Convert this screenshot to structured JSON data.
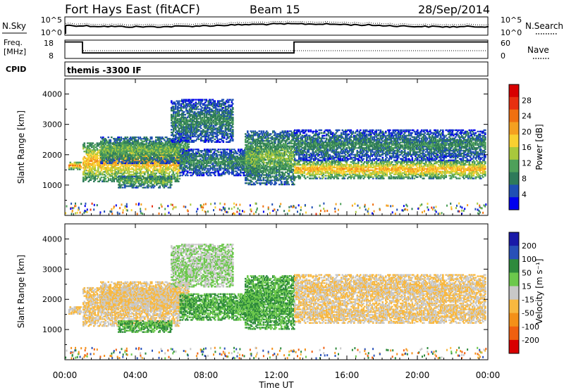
{
  "header": {
    "station": "Fort Hays East (fitACF)",
    "beam": "Beam 15",
    "date": "28/Sep/2014"
  },
  "noise_panel": {
    "left_label": "N.Sky",
    "right_label": "N.Search",
    "left_ticks": [
      "10^5",
      "10^0"
    ],
    "right_ticks": [
      "10^5",
      "10^0"
    ]
  },
  "freq_panel": {
    "left_label_line1": "Freq.",
    "left_label_line2": "[MHz]",
    "right_label": "Nave",
    "left_ticks": [
      "18",
      "8"
    ],
    "right_ticks": [
      "60",
      "0"
    ],
    "freq_steps": [
      {
        "from_hour": 0,
        "to_hour": 1.0,
        "mhz": 17
      },
      {
        "from_hour": 1.0,
        "to_hour": 13.0,
        "mhz": 11
      },
      {
        "from_hour": 13.0,
        "to_hour": 24,
        "mhz": 17
      }
    ]
  },
  "cpid": {
    "label": "CPID",
    "value": "themis -3300 IF"
  },
  "power_panel": {
    "ylabel": "Slant Range [km]",
    "colorbar_label": "Power [dB]",
    "colorbar_ticks": [
      "28",
      "24",
      "20",
      "16",
      "12",
      "8",
      "4"
    ],
    "colors": [
      "#0000ee",
      "#1f4fb4",
      "#2e7a5a",
      "#4ea05a",
      "#a8c83c",
      "#f8d030",
      "#f4a020",
      "#f07010",
      "#e83010",
      "#d80000"
    ]
  },
  "velocity_panel": {
    "ylabel": "Slant Range [km]",
    "colorbar_label": "Velocity [m s⁻¹]",
    "colorbar_ticks": [
      "200",
      "100",
      "50",
      "15",
      "-15",
      "-50",
      "-100",
      "-200"
    ],
    "colors": [
      "#1a1aa8",
      "#2850b8",
      "#2e8a3c",
      "#6cc84c",
      "#c8c8c8",
      "#f8b840",
      "#f49018",
      "#f06010",
      "#d80000"
    ]
  },
  "chart_data": {
    "type": "heatmap",
    "title": "Fort Hays East (fitACF)  Beam 15  28/Sep/2014",
    "xlabel": "Time UT",
    "ylabel": "Slant Range [km]",
    "x_ticks": [
      "00:00",
      "04:00",
      "08:00",
      "12:00",
      "16:00",
      "20:00",
      "00:00"
    ],
    "y_ticks": [
      "1000",
      "2000",
      "3000",
      "4000"
    ],
    "xlim_hours": [
      0,
      24
    ],
    "ylim_km": [
      0,
      4500
    ],
    "scatter_bands": [
      {
        "name": "",
        "t_start": 0.2,
        "t_end": 0.9,
        "r_start": 1500,
        "r_end": 1750,
        "power_db": 24,
        "velocity": -15
      },
      {
        "name": "",
        "t_start": 1.0,
        "t_end": 6.5,
        "r_start": 1100,
        "r_end": 2400,
        "power_db": 22,
        "velocity": -15
      },
      {
        "name": "",
        "t_start": 2.0,
        "t_end": 7.0,
        "r_start": 1700,
        "r_end": 2600,
        "power_db": 14,
        "velocity": -15
      },
      {
        "name": "",
        "t_start": 6.0,
        "t_end": 9.5,
        "r_start": 2400,
        "r_end": 3800,
        "power_db": 10,
        "velocity": 15
      },
      {
        "name": "",
        "t_start": 3.0,
        "t_end": 6.0,
        "r_start": 900,
        "r_end": 1300,
        "power_db": 14,
        "velocity": 50
      },
      {
        "name": "",
        "t_start": 6.5,
        "t_end": 11.0,
        "r_start": 1300,
        "r_end": 2200,
        "power_db": 10,
        "velocity": 50
      },
      {
        "name": "",
        "t_start": 10.2,
        "t_end": 13.0,
        "r_start": 1000,
        "r_end": 2800,
        "power_db": 14,
        "velocity": 50
      },
      {
        "name": "",
        "t_start": 13.0,
        "t_end": 23.8,
        "r_start": 1200,
        "r_end": 1800,
        "power_db": 22,
        "velocity": -15
      },
      {
        "name": "",
        "t_start": 13.0,
        "t_end": 23.8,
        "r_start": 1800,
        "r_end": 2800,
        "power_db": 10,
        "velocity": -15
      }
    ]
  }
}
